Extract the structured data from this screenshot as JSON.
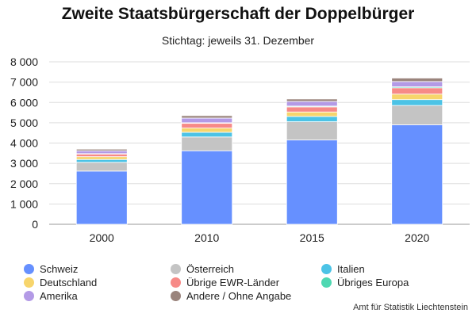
{
  "title": "Zweite Staatsbürgerschaft der Doppelbürger",
  "subtitle": "Stichtag: jeweils 31. Dezember",
  "source": "Amt für Statistik Liechtenstein",
  "chart_data": {
    "type": "bar",
    "stacked": true,
    "categories": [
      "2000",
      "2010",
      "2015",
      "2020"
    ],
    "ylim": [
      0,
      8000
    ],
    "yticks": [
      0,
      1000,
      2000,
      3000,
      4000,
      5000,
      6000,
      7000,
      8000
    ],
    "ytick_labels": [
      "0",
      "1 000",
      "2 000",
      "3 000",
      "4 000",
      "5 000",
      "6 000",
      "7 000",
      "8 000"
    ],
    "grid": true,
    "legend_position": "bottom",
    "series": [
      {
        "name": "Schweiz",
        "color": "#6690ff",
        "values": [
          2620,
          3620,
          4150,
          4900
        ]
      },
      {
        "name": "Österreich",
        "color": "#c4c4c4",
        "values": [
          430,
          680,
          900,
          950
        ]
      },
      {
        "name": "Italien",
        "color": "#4cc3e6",
        "values": [
          140,
          230,
          260,
          290
        ]
      },
      {
        "name": "Deutschland",
        "color": "#f7d56c",
        "values": [
          140,
          210,
          220,
          270
        ]
      },
      {
        "name": "Übrige EWR-Länder",
        "color": "#f78a87",
        "values": [
          130,
          230,
          250,
          310
        ]
      },
      {
        "name": "Übriges Europa",
        "color": "#4fd8b2",
        "values": [
          20,
          30,
          40,
          50
        ]
      },
      {
        "name": "Amerika",
        "color": "#b39ae6",
        "values": [
          140,
          230,
          230,
          260
        ]
      },
      {
        "name": "Andere / Ohne Angabe",
        "color": "#9a847c",
        "values": [
          80,
          120,
          120,
          170
        ]
      }
    ]
  }
}
